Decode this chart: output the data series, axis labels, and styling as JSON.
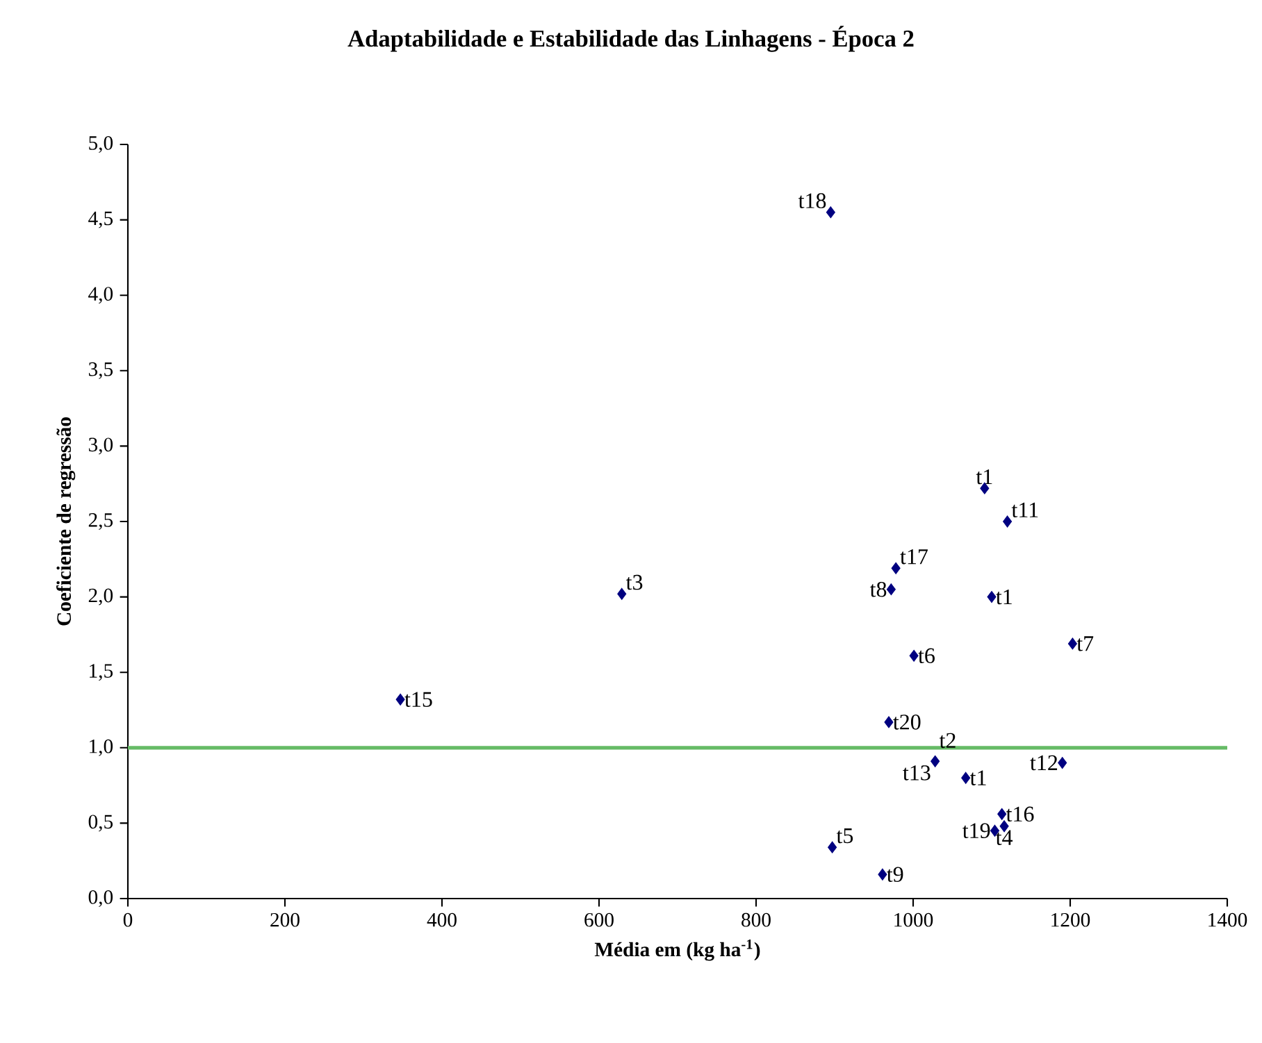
{
  "chart_data": {
    "type": "scatter",
    "title": "Adaptabilidade e Estabilidade das Linhagens - Época 2",
    "xlabel": "Média em (kg ha$^{-1}$)",
    "ylabel": "Coeficiente de regressão",
    "x": [
      895,
      1091,
      1120,
      978,
      972,
      1100,
      1001,
      1203,
      347,
      629,
      969,
      1028,
      1067,
      1190,
      1113,
      1116,
      1104,
      897,
      961
    ],
    "series": [
      {
        "color": "#000080",
        "values": [
          4.55,
          2.72,
          2.5,
          2.19,
          2.05,
          2.0,
          1.61,
          1.69,
          1.32,
          2.02,
          1.17,
          0.91,
          0.8,
          0.9,
          0.56,
          0.48,
          0.45,
          0.34,
          0.16
        ]
      }
    ],
    "marker": "diamond",
    "grid": false,
    "xlim": [
      0,
      1400
    ],
    "xticks": [
      0,
      200,
      400,
      600,
      800,
      1000,
      1200,
      1400
    ],
    "ylim": [
      0,
      5
    ],
    "yticks": [
      {
        "value": 0,
        "label": "0,0"
      },
      {
        "value": 0.5,
        "label": "0,5"
      },
      {
        "value": 1,
        "label": "1,0"
      },
      {
        "value": 1.5,
        "label": "1,5"
      },
      {
        "value": 2,
        "label": "2,0"
      },
      {
        "value": 2.5,
        "label": "2,5"
      },
      {
        "value": 3,
        "label": "3,0"
      },
      {
        "value": 3.5,
        "label": "3,5"
      },
      {
        "value": 4,
        "label": "4,0"
      },
      {
        "value": 4.5,
        "label": "4,5"
      },
      {
        "value": 5,
        "label": "5,0"
      }
    ],
    "ref_lines": [
      {
        "axis": "y",
        "value": 1,
        "color": "#66bb66"
      }
    ],
    "annotations": [
      {
        "text": "t18",
        "x": 895,
        "y": 4.55
      },
      {
        "text": "t1",
        "x": 1091,
        "y": 2.72
      },
      {
        "text": "t11",
        "x": 1120,
        "y": 2.5
      },
      {
        "text": "t17",
        "x": 978,
        "y": 2.19
      },
      {
        "text": "t8",
        "x": 972,
        "y": 2.05
      },
      {
        "text": "t1",
        "x": 1100,
        "y": 2.0
      },
      {
        "text": "t6",
        "x": 1001,
        "y": 1.61
      },
      {
        "text": "t7",
        "x": 1203,
        "y": 1.69
      },
      {
        "text": "t15",
        "x": 347,
        "y": 1.32
      },
      {
        "text": "t3",
        "x": 629,
        "y": 2.02
      },
      {
        "text": "t20",
        "x": 969,
        "y": 1.17
      },
      {
        "text": "t2",
        "x": 1028,
        "y": 0.91
      },
      {
        "text": "t13",
        "x": 1028,
        "y": 0.91
      },
      {
        "text": "t1",
        "x": 1067,
        "y": 0.8
      },
      {
        "text": "t12",
        "x": 1190,
        "y": 0.9
      },
      {
        "text": "t16",
        "x": 1113,
        "y": 0.56
      },
      {
        "text": "t4",
        "x": 1116,
        "y": 0.48
      },
      {
        "text": "t19",
        "x": 1104,
        "y": 0.45
      },
      {
        "text": "t5",
        "x": 897,
        "y": 0.34
      },
      {
        "text": "t9",
        "x": 961,
        "y": 0.16
      }
    ]
  }
}
